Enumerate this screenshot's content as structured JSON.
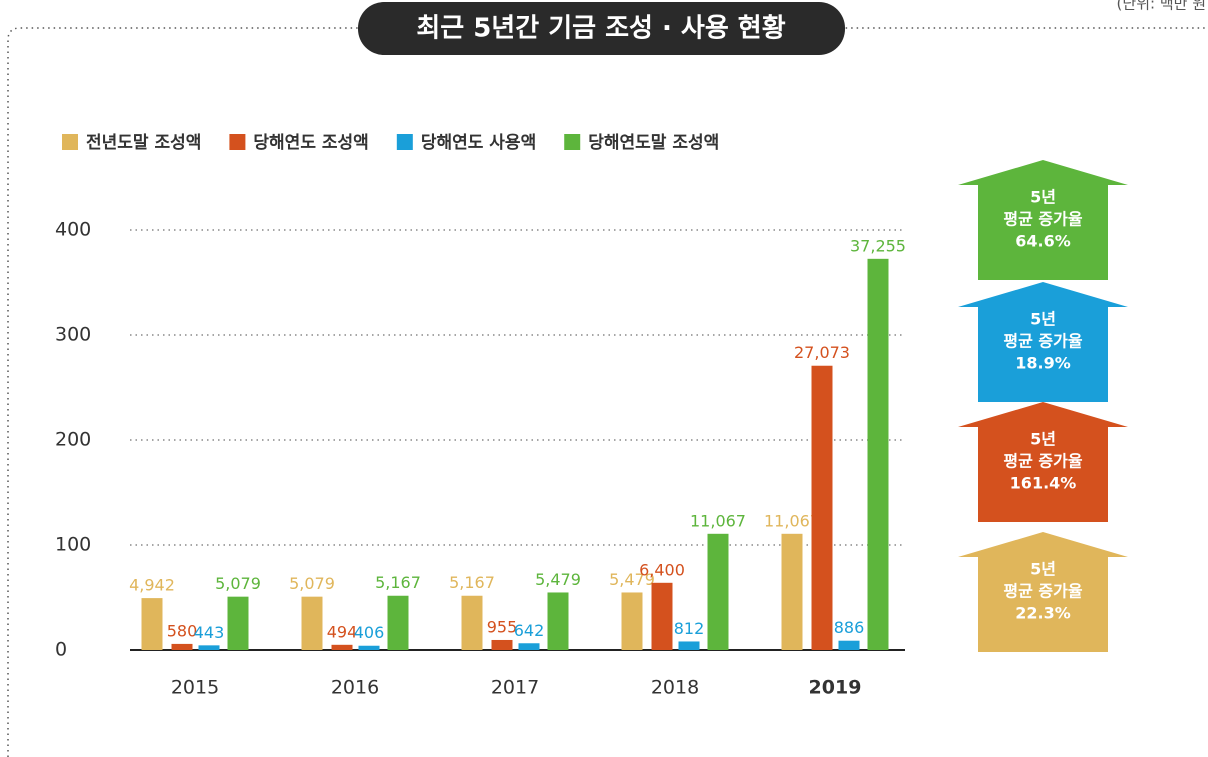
{
  "chart_data": {
    "type": "bar",
    "title": "최근 5년간 기금 조성 · 사용 현황",
    "unit_note": "(단위: 백만 원",
    "categories": [
      "2015",
      "2016",
      "2017",
      "2018",
      "2019"
    ],
    "series": [
      {
        "name": "전년도말 조성액",
        "color": "#e0b65b",
        "values": [
          49.42,
          50.79,
          51.67,
          54.79,
          110.67
        ],
        "value_labels": [
          "4,942",
          "5,079",
          "5,167",
          "5,479",
          "11,067"
        ]
      },
      {
        "name": "당해연도 조성액",
        "color": "#d4511e",
        "values": [
          5.8,
          4.94,
          9.55,
          64.0,
          270.73
        ],
        "value_labels": [
          "580",
          "494",
          "955",
          "6,400",
          "27,073"
        ]
      },
      {
        "name": "당해연도 사용액",
        "color": "#1a9fd9",
        "values": [
          4.43,
          4.06,
          6.42,
          8.12,
          8.86
        ],
        "value_labels": [
          "443",
          "406",
          "642",
          "812",
          "886"
        ]
      },
      {
        "name": "당해연도말 조성액",
        "color": "#5db53c",
        "values": [
          50.79,
          51.67,
          54.79,
          110.67,
          372.55
        ],
        "value_labels": [
          "5,079",
          "5,167",
          "5,479",
          "11,067",
          "37,255"
        ]
      }
    ],
    "ylim": [
      0,
      400
    ],
    "yticks": [
      0,
      100,
      200,
      300,
      400
    ],
    "grid": true,
    "annotations": [
      {
        "lines": [
          "5년",
          "평균 증가율",
          "64.6%"
        ],
        "color": "#5db53c"
      },
      {
        "lines": [
          "5년",
          "평균 증가율",
          "18.9%"
        ],
        "color": "#1a9fd9"
      },
      {
        "lines": [
          "5년",
          "평균 증가율",
          "161.4%"
        ],
        "color": "#d4511e"
      },
      {
        "lines": [
          "5년",
          "평균 증가율",
          "22.3%"
        ],
        "color": "#e0b65b"
      }
    ]
  }
}
